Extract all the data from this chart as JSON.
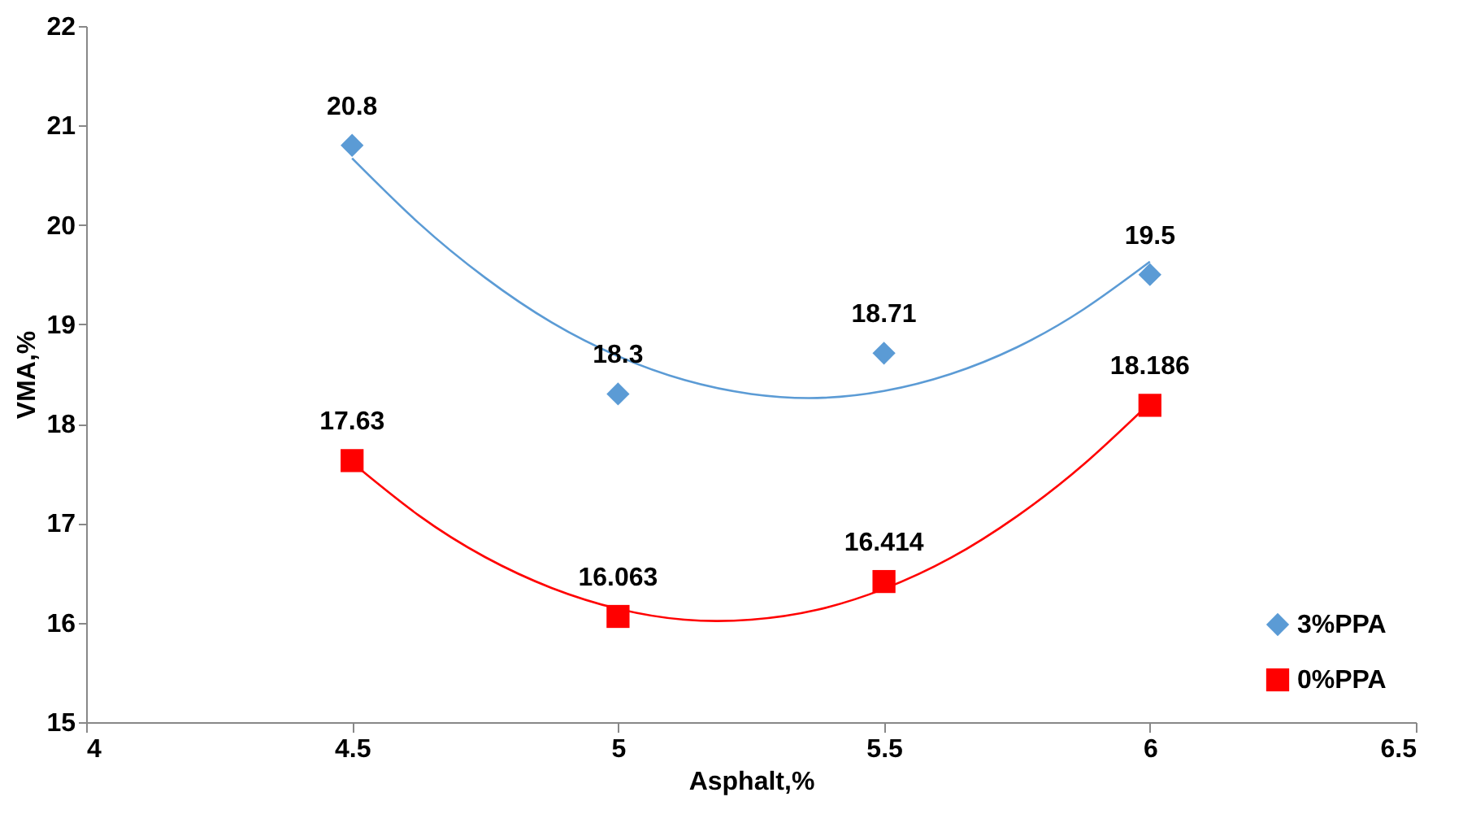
{
  "chart_data": {
    "type": "scatter",
    "xlabel": "Asphalt,%",
    "ylabel": "VMA,%",
    "xlim": [
      4,
      6.5
    ],
    "xticks": [
      4,
      4.5,
      5,
      5.5,
      6,
      6.5
    ],
    "ylim": [
      15,
      22
    ],
    "yticks": [
      15,
      16,
      17,
      18,
      19,
      20,
      21,
      22
    ],
    "grid": false,
    "legend": "bottom right",
    "series": [
      {
        "name": "3%PPA",
        "marker": "diamond",
        "color": "#5b9bd5",
        "x": [
          4.5,
          5,
          5.5,
          6
        ],
        "values": [
          20.8,
          18.3,
          18.71,
          19.5
        ],
        "value_labels": [
          "20.8",
          "18.3",
          "18.71",
          "19.5"
        ]
      },
      {
        "name": "0%PPA",
        "marker": "square",
        "color": "#ff0000",
        "x": [
          4.5,
          5,
          5.5,
          6
        ],
        "values": [
          17.63,
          16.063,
          16.414,
          18.186
        ],
        "value_labels": [
          "17.63",
          "16.063",
          "16.414",
          "18.186"
        ]
      },
      {
        "type": "line",
        "color": "#5b9bd5",
        "x": [
          4.5,
          4.625,
          4.75,
          4.875,
          5,
          5.125,
          5.25,
          5.375,
          5.5,
          5.625,
          5.75,
          5.875,
          6
        ],
        "values": [
          20.67,
          20.02,
          19.47,
          19.02,
          18.68,
          18.44,
          18.3,
          18.26,
          18.33,
          18.5,
          18.77,
          19.15,
          19.63
        ]
      },
      {
        "type": "line",
        "color": "#ff0000",
        "x": [
          4.5,
          4.625,
          4.75,
          4.875,
          5,
          5.125,
          5.25,
          5.375,
          5.5,
          5.625,
          5.75,
          5.875,
          6
        ],
        "values": [
          17.61,
          17.08,
          16.66,
          16.35,
          16.14,
          16.03,
          16.03,
          16.13,
          16.34,
          16.65,
          17.07,
          17.59,
          18.21
        ]
      }
    ]
  }
}
